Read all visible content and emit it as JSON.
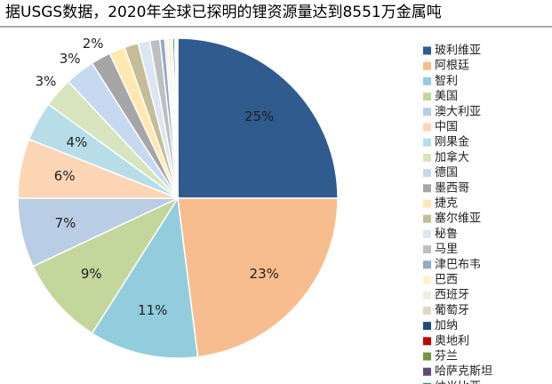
{
  "chart_data": {
    "type": "pie",
    "title": "据USGS数据，2020年全球已探明的锂资源量达到8551万金属吨",
    "categories": [
      "玻利维亚",
      "阿根廷",
      "智利",
      "美国",
      "澳大利亚",
      "中国",
      "刚果金",
      "加拿大",
      "德国",
      "墨西哥",
      "捷克",
      "塞尔维亚",
      "秘鲁",
      "马里",
      "津巴布韦",
      "巴西",
      "西班牙",
      "葡萄牙",
      "加纳",
      "奥地利",
      "芬兰",
      "哈萨克斯坦",
      "纳米比亚"
    ],
    "values": [
      25,
      23,
      11,
      9,
      7,
      6,
      4,
      3,
      3,
      2,
      1.6,
      1.4,
      1.2,
      1.0,
      0.5,
      0.3,
      0.3,
      0.2,
      0.2,
      0.1,
      0.1,
      0.05,
      0.05
    ],
    "value_labels": [
      "25%",
      "23%",
      "11%",
      "9%",
      "7%",
      "6%",
      "4%",
      "3%",
      "3%",
      "2%",
      null,
      null,
      null,
      null,
      null,
      null,
      null,
      null,
      null,
      null,
      null,
      null,
      null
    ],
    "colors": [
      "#2f5b8e",
      "#f8bd8e",
      "#93cddd",
      "#c3d69b",
      "#b9cde5",
      "#fcd5b5",
      "#b7dee8",
      "#d7e4bd",
      "#c6d9f1",
      "#a6a6a6",
      "#ffe9b0",
      "#c4bd97",
      "#dce6f2",
      "#bfbfbf",
      "#95a9c4",
      "#fff2cc",
      "#ebf1de",
      "#ddd9c3",
      "#1f4e79",
      "#c00000",
      "#77933c",
      "#604a7b",
      "#31859c"
    ],
    "legend": "right"
  }
}
